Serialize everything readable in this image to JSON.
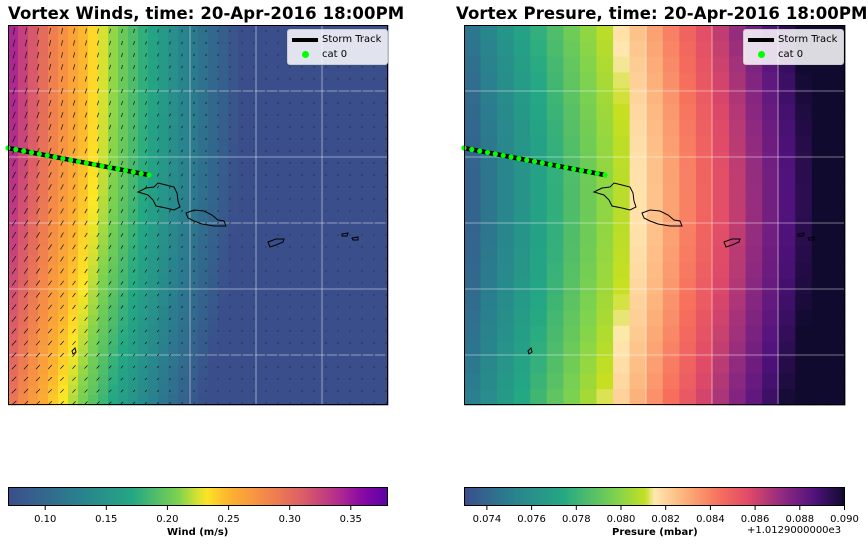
{
  "chart_data": [
    {
      "type": "heatmap",
      "title": "Vortex Winds, time: 20-Apr-2016 18:00PM",
      "overlay": "quiver wind vectors, storm track line, coastlines",
      "colormap": "plasma_r",
      "colorbar": {
        "label": "Wind (m/s)",
        "range": [
          0.07,
          0.38
        ],
        "ticks": [
          "0.10",
          "0.15",
          "0.20",
          "0.25",
          "0.30",
          "0.35"
        ],
        "tick_values": [
          0.1,
          0.15,
          0.2,
          0.25,
          0.3,
          0.35
        ]
      },
      "legend": {
        "position": "top-right",
        "entries": [
          {
            "label": "Storm Track",
            "style": "line",
            "color": "#000000"
          },
          {
            "label": "cat 0",
            "style": "dot",
            "color": "#00ff00"
          }
        ]
      },
      "grid": true
    },
    {
      "type": "heatmap",
      "title": "Vortex Presure, time: 20-Apr-2016 18:00PM",
      "overlay": "storm track line, coastlines",
      "colormap": "magma-style with green low end",
      "colorbar": {
        "label": "Presure (mbar)",
        "range": [
          0.073,
          0.09
        ],
        "ticks": [
          "0.074",
          "0.076",
          "0.078",
          "0.080",
          "0.082",
          "0.084",
          "0.086",
          "0.088",
          "0.090"
        ],
        "tick_values": [
          0.074,
          0.076,
          0.078,
          0.08,
          0.082,
          0.084,
          0.086,
          0.088,
          0.09
        ],
        "offset_text": "+1.0129000000e3"
      },
      "legend": {
        "position": "top-right",
        "entries": [
          {
            "label": "Storm Track",
            "style": "line",
            "color": "#000000"
          },
          {
            "label": "cat 0",
            "style": "dot",
            "color": "#00ff00"
          }
        ]
      },
      "grid": true
    }
  ]
}
